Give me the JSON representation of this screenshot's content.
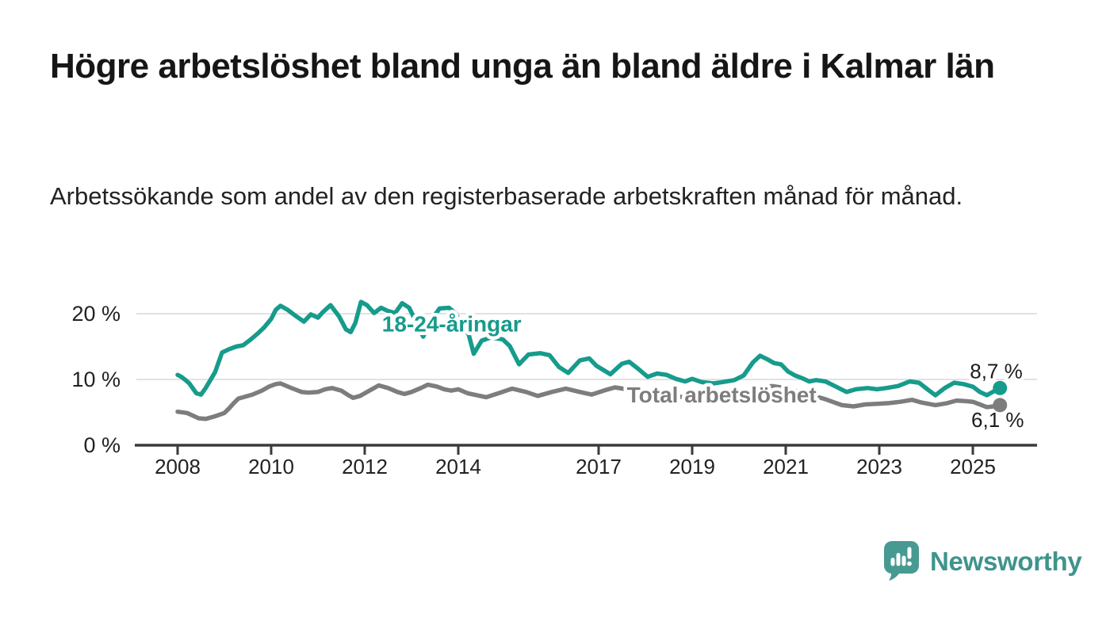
{
  "header": {
    "title": "Högre arbetslöshet bland unga än bland äldre i Kalmar län",
    "subtitle": "Arbetssökande som andel av den registerbaserade arbetskraften månad för månad."
  },
  "footer": {
    "brand": "Newsworthy",
    "logo_icon": "speech-bubble-bar-chart",
    "brand_color": "#3f948c"
  },
  "chart_data": {
    "type": "line",
    "unit": "%",
    "colors": {
      "accent": "#169b8c",
      "muted": "#7d7d7d",
      "text": "#1c1c1c",
      "grid": "#d9d9d9",
      "axis": "#3a3a3a"
    },
    "x_axis": {
      "ticks": [
        {
          "value": 2008,
          "label": "2008"
        },
        {
          "value": 2010,
          "label": "2010"
        },
        {
          "value": 2012,
          "label": "2012"
        },
        {
          "value": 2014,
          "label": "2014"
        },
        {
          "value": 2017,
          "label": "2017"
        },
        {
          "value": 2019,
          "label": "2019"
        },
        {
          "value": 2021,
          "label": "2021"
        },
        {
          "value": 2023,
          "label": "2023"
        },
        {
          "value": 2025,
          "label": "2025"
        }
      ],
      "range": [
        2007.1,
        2026.4
      ],
      "grid": false
    },
    "y_axis": {
      "ticks": [
        {
          "value": 0,
          "label": "0 %"
        },
        {
          "value": 10,
          "label": "10 %"
        },
        {
          "value": 20,
          "label": "20 %"
        }
      ],
      "range": [
        0,
        24
      ],
      "grid": true
    },
    "series": [
      {
        "name": "Total arbetslöshet",
        "color_key": "muted",
        "end_label": "6,1 %",
        "end_value": 6.1,
        "points": [
          [
            2008.0,
            5.1
          ],
          [
            2008.2,
            4.9
          ],
          [
            2008.45,
            4.1
          ],
          [
            2008.6,
            4.0
          ],
          [
            2008.8,
            4.4
          ],
          [
            2009.0,
            4.9
          ],
          [
            2009.1,
            5.6
          ],
          [
            2009.2,
            6.4
          ],
          [
            2009.3,
            7.1
          ],
          [
            2009.6,
            7.7
          ],
          [
            2009.8,
            8.3
          ],
          [
            2009.95,
            8.9
          ],
          [
            2010.1,
            9.3
          ],
          [
            2010.2,
            9.4
          ],
          [
            2010.4,
            8.8
          ],
          [
            2010.65,
            8.1
          ],
          [
            2010.8,
            8.0
          ],
          [
            2011.0,
            8.1
          ],
          [
            2011.15,
            8.5
          ],
          [
            2011.3,
            8.7
          ],
          [
            2011.5,
            8.3
          ],
          [
            2011.65,
            7.6
          ],
          [
            2011.75,
            7.2
          ],
          [
            2011.9,
            7.5
          ],
          [
            2012.1,
            8.3
          ],
          [
            2012.3,
            9.1
          ],
          [
            2012.5,
            8.7
          ],
          [
            2012.7,
            8.1
          ],
          [
            2012.85,
            7.8
          ],
          [
            2013.0,
            8.1
          ],
          [
            2013.2,
            8.7
          ],
          [
            2013.35,
            9.2
          ],
          [
            2013.55,
            8.9
          ],
          [
            2013.7,
            8.5
          ],
          [
            2013.85,
            8.3
          ],
          [
            2014.0,
            8.5
          ],
          [
            2014.2,
            7.9
          ],
          [
            2014.6,
            7.3
          ],
          [
            2014.9,
            8.0
          ],
          [
            2015.15,
            8.6
          ],
          [
            2015.45,
            8.1
          ],
          [
            2015.7,
            7.5
          ],
          [
            2016.0,
            8.1
          ],
          [
            2016.3,
            8.6
          ],
          [
            2016.6,
            8.1
          ],
          [
            2016.85,
            7.7
          ],
          [
            2017.15,
            8.4
          ],
          [
            2017.35,
            8.8
          ],
          [
            2017.6,
            8.5
          ],
          [
            2017.9,
            8.1
          ],
          [
            2018.2,
            7.9
          ],
          [
            2018.5,
            7.7
          ],
          [
            2018.8,
            7.3
          ],
          [
            2019.1,
            7.3
          ],
          [
            2019.4,
            7.1
          ],
          [
            2019.7,
            7.0
          ],
          [
            2019.95,
            7.2
          ],
          [
            2020.2,
            7.8
          ],
          [
            2020.45,
            8.8
          ],
          [
            2020.7,
            9.0
          ],
          [
            2020.9,
            8.8
          ],
          [
            2021.1,
            8.5
          ],
          [
            2021.35,
            8.0
          ],
          [
            2021.6,
            7.5
          ],
          [
            2021.85,
            7.0
          ],
          [
            2022.0,
            6.6
          ],
          [
            2022.2,
            6.1
          ],
          [
            2022.45,
            5.9
          ],
          [
            2022.7,
            6.2
          ],
          [
            2022.95,
            6.3
          ],
          [
            2023.2,
            6.4
          ],
          [
            2023.45,
            6.6
          ],
          [
            2023.7,
            6.9
          ],
          [
            2023.9,
            6.5
          ],
          [
            2024.2,
            6.1
          ],
          [
            2024.45,
            6.4
          ],
          [
            2024.65,
            6.8
          ],
          [
            2024.85,
            6.7
          ],
          [
            2025.0,
            6.6
          ],
          [
            2025.15,
            6.2
          ],
          [
            2025.3,
            5.8
          ],
          [
            2025.45,
            5.9
          ],
          [
            2025.58,
            6.1
          ]
        ]
      },
      {
        "name": "18-24-åringar",
        "color_key": "accent",
        "end_label": "8,7 %",
        "end_value": 8.7,
        "points": [
          [
            2008.0,
            10.7
          ],
          [
            2008.08,
            10.4
          ],
          [
            2008.17,
            9.9
          ],
          [
            2008.25,
            9.4
          ],
          [
            2008.4,
            7.9
          ],
          [
            2008.5,
            7.7
          ],
          [
            2008.6,
            8.7
          ],
          [
            2008.8,
            11.1
          ],
          [
            2008.95,
            14.1
          ],
          [
            2009.1,
            14.6
          ],
          [
            2009.25,
            15.0
          ],
          [
            2009.4,
            15.2
          ],
          [
            2009.55,
            16.0
          ],
          [
            2009.7,
            16.9
          ],
          [
            2009.85,
            17.9
          ],
          [
            2010.0,
            19.2
          ],
          [
            2010.1,
            20.6
          ],
          [
            2010.2,
            21.2
          ],
          [
            2010.35,
            20.6
          ],
          [
            2010.5,
            19.8
          ],
          [
            2010.7,
            18.8
          ],
          [
            2010.85,
            19.9
          ],
          [
            2011.0,
            19.4
          ],
          [
            2011.1,
            20.2
          ],
          [
            2011.27,
            21.3
          ],
          [
            2011.45,
            19.6
          ],
          [
            2011.6,
            17.6
          ],
          [
            2011.7,
            17.2
          ],
          [
            2011.8,
            18.6
          ],
          [
            2011.92,
            21.8
          ],
          [
            2012.05,
            21.3
          ],
          [
            2012.2,
            20.1
          ],
          [
            2012.35,
            20.9
          ],
          [
            2012.5,
            20.4
          ],
          [
            2012.65,
            20.1
          ],
          [
            2012.8,
            21.6
          ],
          [
            2012.95,
            20.9
          ],
          [
            2013.1,
            18.7
          ],
          [
            2013.25,
            16.5
          ],
          [
            2013.4,
            18.8
          ],
          [
            2013.6,
            20.8
          ],
          [
            2013.8,
            20.9
          ],
          [
            2013.95,
            20.0
          ],
          [
            2014.1,
            17.7
          ],
          [
            2014.22,
            16.9
          ],
          [
            2014.33,
            13.9
          ],
          [
            2014.5,
            15.9
          ],
          [
            2014.7,
            16.4
          ],
          [
            2014.95,
            16.1
          ],
          [
            2015.1,
            15.1
          ],
          [
            2015.3,
            12.3
          ],
          [
            2015.5,
            13.8
          ],
          [
            2015.75,
            14.0
          ],
          [
            2015.95,
            13.7
          ],
          [
            2016.15,
            11.9
          ],
          [
            2016.35,
            11.0
          ],
          [
            2016.6,
            12.9
          ],
          [
            2016.8,
            13.2
          ],
          [
            2016.95,
            12.1
          ],
          [
            2017.25,
            10.8
          ],
          [
            2017.5,
            12.4
          ],
          [
            2017.65,
            12.7
          ],
          [
            2017.85,
            11.6
          ],
          [
            2018.05,
            10.4
          ],
          [
            2018.25,
            10.9
          ],
          [
            2018.45,
            10.7
          ],
          [
            2018.65,
            10.1
          ],
          [
            2018.85,
            9.7
          ],
          [
            2019.0,
            10.1
          ],
          [
            2019.2,
            9.6
          ],
          [
            2019.45,
            9.4
          ],
          [
            2019.65,
            9.6
          ],
          [
            2019.9,
            9.9
          ],
          [
            2020.1,
            10.6
          ],
          [
            2020.3,
            12.6
          ],
          [
            2020.45,
            13.6
          ],
          [
            2020.6,
            13.1
          ],
          [
            2020.75,
            12.5
          ],
          [
            2020.9,
            12.3
          ],
          [
            2021.05,
            11.2
          ],
          [
            2021.2,
            10.6
          ],
          [
            2021.35,
            10.2
          ],
          [
            2021.5,
            9.7
          ],
          [
            2021.65,
            9.9
          ],
          [
            2021.85,
            9.7
          ],
          [
            2022.05,
            9.0
          ],
          [
            2022.3,
            8.1
          ],
          [
            2022.5,
            8.5
          ],
          [
            2022.75,
            8.7
          ],
          [
            2022.95,
            8.5
          ],
          [
            2023.15,
            8.7
          ],
          [
            2023.4,
            9.0
          ],
          [
            2023.65,
            9.7
          ],
          [
            2023.85,
            9.5
          ],
          [
            2024.05,
            8.4
          ],
          [
            2024.2,
            7.6
          ],
          [
            2024.4,
            8.7
          ],
          [
            2024.6,
            9.5
          ],
          [
            2024.8,
            9.3
          ],
          [
            2025.0,
            8.9
          ],
          [
            2025.15,
            8.1
          ],
          [
            2025.3,
            7.6
          ],
          [
            2025.45,
            8.2
          ],
          [
            2025.58,
            8.7
          ]
        ]
      }
    ],
    "annotations": [
      {
        "text": "18-24-åringar",
        "x": 2013.86,
        "y": 18.5,
        "color_key": "accent",
        "weight": "bold",
        "size": 28
      },
      {
        "text": "Total arbetslöshet",
        "x": 2019.63,
        "y": 7.7,
        "color_key": "muted",
        "weight": "bold",
        "size": 28
      },
      {
        "text": "8,7 %",
        "x": 2025.5,
        "y": 11.3,
        "color_key": "text",
        "weight": "normal",
        "size": 26
      },
      {
        "text": "6,1 %",
        "x": 2025.53,
        "y": 3.85,
        "color_key": "text",
        "weight": "normal",
        "size": 26
      }
    ],
    "legend_position": "inline-labels"
  }
}
